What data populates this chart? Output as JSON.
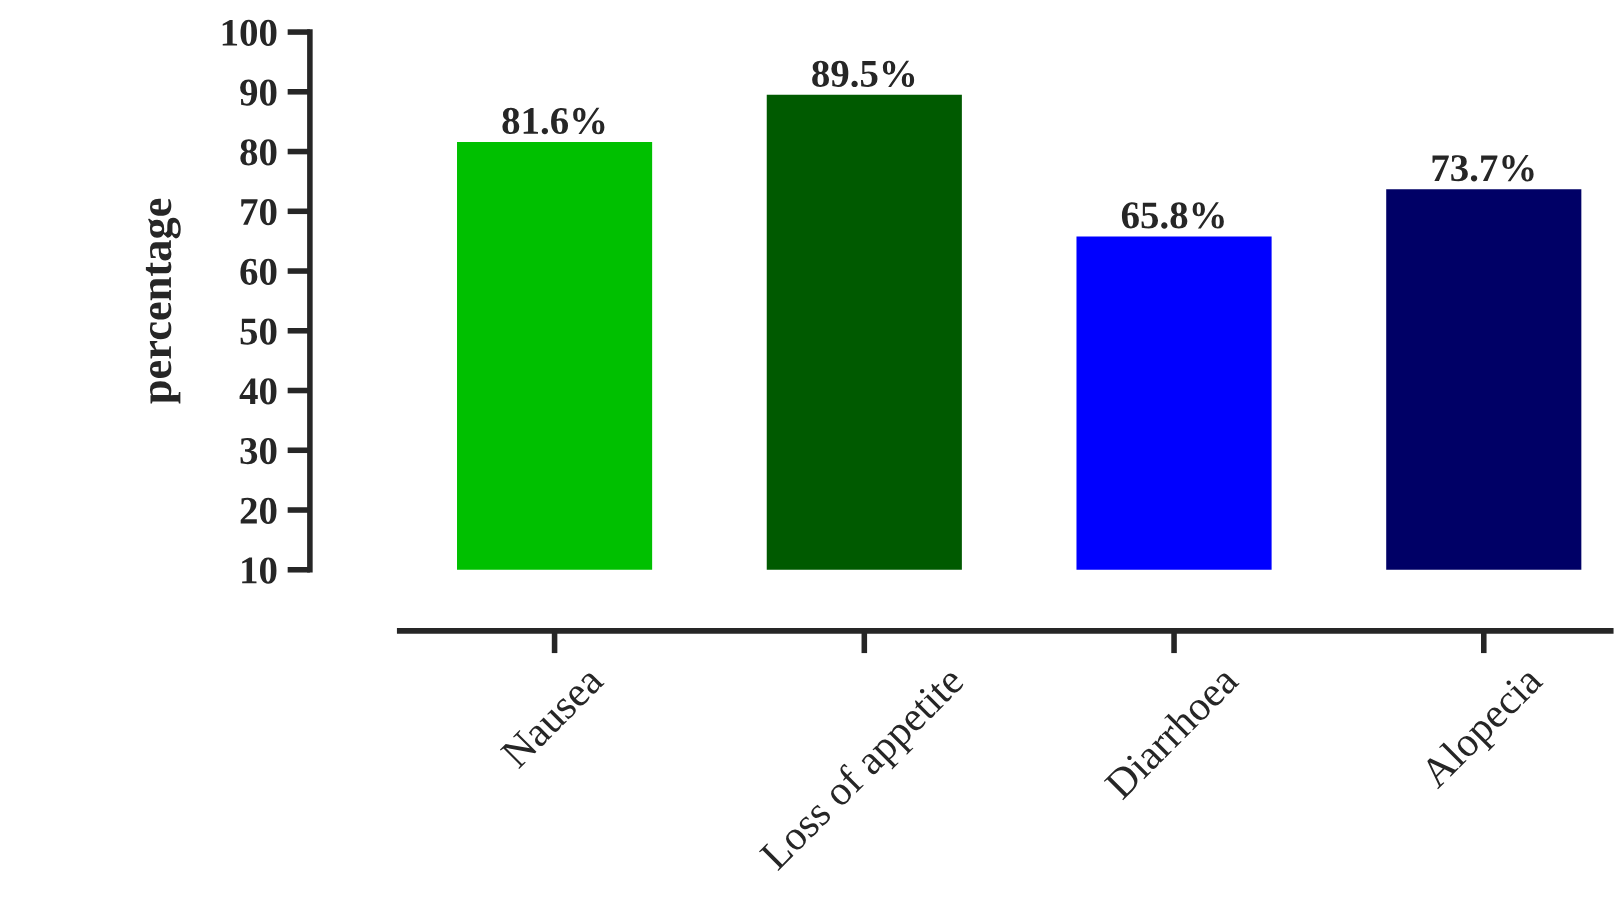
{
  "chart_data": {
    "type": "bar",
    "ylabel": "percentage",
    "categories": [
      "Nausea",
      "Loss of appetite",
      "Diarrhoea",
      "Alopecia"
    ],
    "values": [
      81.6,
      89.5,
      65.8,
      73.7
    ],
    "value_labels": [
      "81.6%",
      "89.5%",
      "65.8%",
      "73.7%"
    ],
    "colors": [
      "#00c000",
      "#005a00",
      "#0000ff",
      "#000066"
    ],
    "ylim": [
      10,
      100
    ],
    "yticks": [
      10,
      20,
      30,
      40,
      50,
      60,
      70,
      80,
      90,
      100
    ],
    "grid": false,
    "legend": false
  }
}
